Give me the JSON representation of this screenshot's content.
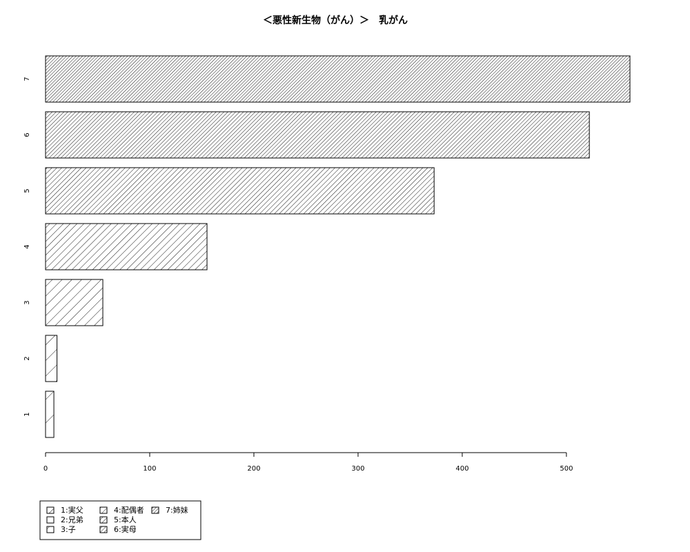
{
  "chart_data": {
    "type": "bar",
    "orientation": "horizontal",
    "title": "＜悪性新生物（がん）＞　乳がん",
    "categories": [
      "1",
      "2",
      "3",
      "4",
      "5",
      "6",
      "7"
    ],
    "values": [
      8,
      11,
      55,
      155,
      373,
      522,
      561
    ],
    "x_ticks": [
      0,
      100,
      200,
      300,
      400,
      500
    ],
    "xlim": [
      0,
      561
    ],
    "grid": false,
    "legend": {
      "position": "bottom-left",
      "entries": [
        "1:実父",
        "2:兄弟",
        "3:子",
        "4:配偶者",
        "5:本人",
        "6:実母",
        "7:姉妹"
      ]
    }
  }
}
